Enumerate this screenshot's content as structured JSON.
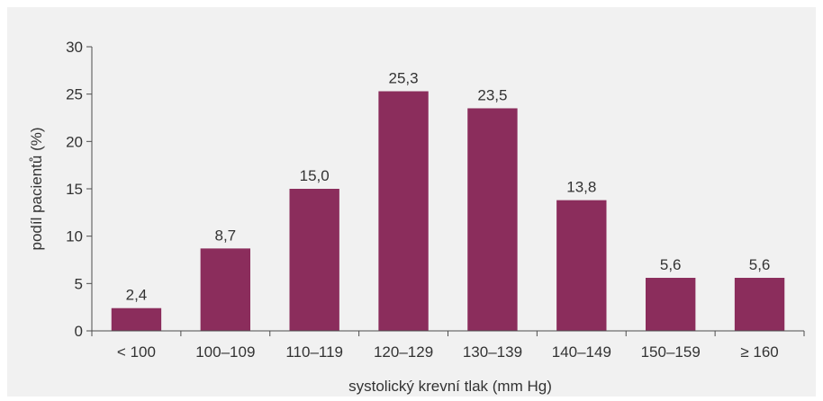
{
  "chart_data": {
    "type": "bar",
    "categories": [
      "< 100",
      "100–109",
      "110–119",
      "120–129",
      "130–139",
      "140–149",
      "150–159",
      "≥ 160"
    ],
    "values": [
      2.4,
      8.7,
      15.0,
      25.3,
      23.5,
      13.8,
      5.6,
      5.6
    ],
    "value_labels": [
      "2,4",
      "8,7",
      "15,0",
      "25,3",
      "23,5",
      "13,8",
      "5,6",
      "5,6"
    ],
    "xlabel": "systolický krevní tlak (mm Hg)",
    "ylabel": "podíl pacientů (%)",
    "ylim": [
      0,
      30
    ],
    "yticks": [
      0,
      5,
      10,
      15,
      20,
      25,
      30
    ],
    "grid": false,
    "colors": {
      "background": "#f1f1f1",
      "bar": "#8b2d5c",
      "axis": "#4d4d4d"
    }
  }
}
